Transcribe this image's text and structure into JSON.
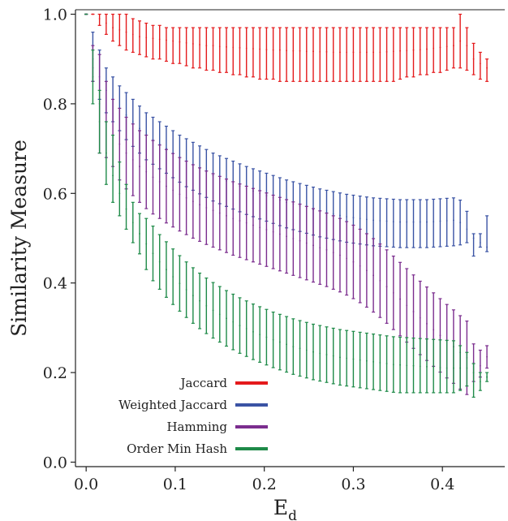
{
  "chart_data": {
    "type": "line",
    "title": "",
    "xlabel": "E",
    "xlabel_sub": "d",
    "ylabel": "Similarity Measure",
    "xlim": [
      -0.012,
      0.47
    ],
    "ylim": [
      -0.01,
      1.01
    ],
    "xticks": [
      0.0,
      0.1,
      0.2,
      0.3,
      0.4
    ],
    "xtick_labels": [
      "0.0",
      "0.1",
      "0.2",
      "0.3",
      "0.4"
    ],
    "yticks": [
      0.0,
      0.2,
      0.4,
      0.6,
      0.8,
      1.0
    ],
    "ytick_labels": [
      "0.0",
      "0.2",
      "0.4",
      "0.6",
      "0.8",
      "1.0"
    ],
    "grid": false,
    "legend_placement": "lower-left",
    "x": [
      0.0,
      0.0075,
      0.015,
      0.0225,
      0.03,
      0.0375,
      0.045,
      0.0525,
      0.06,
      0.0675,
      0.075,
      0.0825,
      0.09,
      0.0975,
      0.105,
      0.1125,
      0.12,
      0.1275,
      0.135,
      0.1425,
      0.15,
      0.1575,
      0.165,
      0.1725,
      0.18,
      0.1875,
      0.195,
      0.2025,
      0.21,
      0.2175,
      0.225,
      0.2325,
      0.24,
      0.2475,
      0.255,
      0.2625,
      0.27,
      0.2775,
      0.285,
      0.2925,
      0.3,
      0.3075,
      0.315,
      0.3225,
      0.33,
      0.3375,
      0.345,
      0.3525,
      0.36,
      0.3675,
      0.375,
      0.3825,
      0.39,
      0.3975,
      0.405,
      0.4125,
      0.42,
      0.4275,
      0.435,
      0.4425,
      0.45
    ],
    "series": [
      {
        "name": "Jaccard",
        "color": "#e41a1c",
        "mean": [
          1.0,
          1.0,
          0.99,
          0.98,
          0.97,
          0.965,
          0.96,
          0.955,
          0.95,
          0.948,
          0.946,
          0.944,
          0.942,
          0.94,
          0.938,
          0.936,
          0.934,
          0.932,
          0.93,
          0.93,
          0.928,
          0.927,
          0.926,
          0.925,
          0.924,
          0.923,
          0.922,
          0.921,
          0.92,
          0.92,
          0.919,
          0.918,
          0.918,
          0.917,
          0.917,
          0.916,
          0.916,
          0.915,
          0.915,
          0.915,
          0.915,
          0.915,
          0.915,
          0.915,
          0.915,
          0.916,
          0.917,
          0.918,
          0.919,
          0.92,
          0.921,
          0.922,
          0.924,
          0.926,
          0.928,
          0.93,
          0.94,
          0.93,
          0.9,
          0.89,
          0.88
        ],
        "lower": [
          1.0,
          1.0,
          0.975,
          0.955,
          0.94,
          0.93,
          0.92,
          0.915,
          0.91,
          0.905,
          0.9,
          0.9,
          0.895,
          0.89,
          0.89,
          0.885,
          0.88,
          0.88,
          0.875,
          0.875,
          0.87,
          0.87,
          0.865,
          0.865,
          0.86,
          0.86,
          0.855,
          0.855,
          0.855,
          0.85,
          0.85,
          0.85,
          0.85,
          0.85,
          0.85,
          0.85,
          0.85,
          0.85,
          0.85,
          0.85,
          0.85,
          0.85,
          0.85,
          0.85,
          0.85,
          0.85,
          0.85,
          0.855,
          0.86,
          0.86,
          0.865,
          0.865,
          0.87,
          0.87,
          0.875,
          0.88,
          0.88,
          0.875,
          0.865,
          0.855,
          0.85
        ],
        "upper": [
          1.0,
          1.0,
          1.0,
          1.0,
          1.0,
          1.0,
          1.0,
          0.99,
          0.985,
          0.98,
          0.975,
          0.975,
          0.97,
          0.97,
          0.97,
          0.97,
          0.97,
          0.97,
          0.97,
          0.97,
          0.97,
          0.97,
          0.97,
          0.97,
          0.97,
          0.97,
          0.97,
          0.97,
          0.97,
          0.97,
          0.97,
          0.97,
          0.97,
          0.97,
          0.97,
          0.97,
          0.97,
          0.97,
          0.97,
          0.97,
          0.97,
          0.97,
          0.97,
          0.97,
          0.97,
          0.97,
          0.97,
          0.97,
          0.97,
          0.97,
          0.97,
          0.97,
          0.97,
          0.97,
          0.97,
          0.97,
          1.0,
          0.97,
          0.935,
          0.915,
          0.9
        ]
      },
      {
        "name": "Weighted Jaccard",
        "color": "#3a53a4",
        "mean": [
          1.0,
          0.9,
          0.86,
          0.83,
          0.81,
          0.79,
          0.775,
          0.76,
          0.745,
          0.73,
          0.72,
          0.71,
          0.7,
          0.69,
          0.68,
          0.672,
          0.664,
          0.656,
          0.648,
          0.64,
          0.634,
          0.628,
          0.622,
          0.616,
          0.61,
          0.605,
          0.6,
          0.595,
          0.59,
          0.585,
          0.58,
          0.576,
          0.572,
          0.568,
          0.564,
          0.56,
          0.557,
          0.554,
          0.551,
          0.548,
          0.546,
          0.544,
          0.542,
          0.54,
          0.539,
          0.538,
          0.537,
          0.536,
          0.536,
          0.536,
          0.536,
          0.536,
          0.537,
          0.538,
          0.539,
          0.54,
          0.535,
          0.52,
          0.5,
          0.49,
          0.48
        ],
        "lower": [
          1.0,
          0.85,
          0.81,
          0.78,
          0.76,
          0.74,
          0.72,
          0.705,
          0.69,
          0.675,
          0.665,
          0.655,
          0.645,
          0.635,
          0.625,
          0.615,
          0.607,
          0.599,
          0.591,
          0.583,
          0.577,
          0.571,
          0.565,
          0.559,
          0.553,
          0.548,
          0.543,
          0.538,
          0.533,
          0.528,
          0.523,
          0.519,
          0.515,
          0.511,
          0.507,
          0.503,
          0.5,
          0.497,
          0.494,
          0.491,
          0.489,
          0.487,
          0.485,
          0.483,
          0.482,
          0.481,
          0.48,
          0.479,
          0.479,
          0.479,
          0.479,
          0.479,
          0.48,
          0.481,
          0.482,
          0.483,
          0.485,
          0.49,
          0.46,
          0.48,
          0.47
        ],
        "upper": [
          1.0,
          0.96,
          0.92,
          0.88,
          0.86,
          0.84,
          0.825,
          0.81,
          0.795,
          0.78,
          0.77,
          0.76,
          0.75,
          0.74,
          0.73,
          0.722,
          0.714,
          0.706,
          0.698,
          0.69,
          0.684,
          0.678,
          0.672,
          0.666,
          0.66,
          0.655,
          0.65,
          0.645,
          0.64,
          0.635,
          0.63,
          0.626,
          0.622,
          0.618,
          0.614,
          0.61,
          0.607,
          0.604,
          0.601,
          0.598,
          0.596,
          0.594,
          0.592,
          0.59,
          0.589,
          0.588,
          0.587,
          0.586,
          0.586,
          0.586,
          0.586,
          0.586,
          0.587,
          0.588,
          0.589,
          0.59,
          0.585,
          0.56,
          0.51,
          0.51,
          0.55
        ]
      },
      {
        "name": "Hamming",
        "color": "#7b2d8e",
        "mean": [
          1.0,
          0.88,
          0.8,
          0.76,
          0.73,
          0.71,
          0.69,
          0.675,
          0.66,
          0.648,
          0.636,
          0.626,
          0.616,
          0.607,
          0.598,
          0.59,
          0.582,
          0.575,
          0.568,
          0.562,
          0.556,
          0.55,
          0.544,
          0.539,
          0.534,
          0.529,
          0.524,
          0.519,
          0.514,
          0.509,
          0.504,
          0.499,
          0.494,
          0.489,
          0.484,
          0.479,
          0.474,
          0.468,
          0.462,
          0.455,
          0.447,
          0.438,
          0.428,
          0.417,
          0.405,
          0.392,
          0.378,
          0.364,
          0.35,
          0.336,
          0.322,
          0.309,
          0.296,
          0.283,
          0.27,
          0.258,
          0.245,
          0.233,
          0.222,
          0.215,
          0.235
        ],
        "lower": [
          1.0,
          0.85,
          0.69,
          0.68,
          0.66,
          0.63,
          0.61,
          0.595,
          0.58,
          0.566,
          0.554,
          0.544,
          0.534,
          0.525,
          0.516,
          0.508,
          0.5,
          0.493,
          0.486,
          0.48,
          0.474,
          0.468,
          0.462,
          0.457,
          0.452,
          0.447,
          0.442,
          0.437,
          0.432,
          0.427,
          0.422,
          0.417,
          0.412,
          0.407,
          0.402,
          0.397,
          0.392,
          0.386,
          0.38,
          0.373,
          0.365,
          0.356,
          0.346,
          0.335,
          0.323,
          0.31,
          0.296,
          0.282,
          0.268,
          0.254,
          0.24,
          0.227,
          0.214,
          0.201,
          0.188,
          0.176,
          0.163,
          0.151,
          0.18,
          0.19,
          0.21
        ],
        "upper": [
          1.0,
          0.93,
          0.91,
          0.85,
          0.81,
          0.79,
          0.77,
          0.755,
          0.74,
          0.73,
          0.718,
          0.708,
          0.698,
          0.689,
          0.68,
          0.672,
          0.664,
          0.657,
          0.65,
          0.644,
          0.638,
          0.632,
          0.626,
          0.621,
          0.616,
          0.611,
          0.606,
          0.601,
          0.596,
          0.591,
          0.586,
          0.581,
          0.576,
          0.571,
          0.566,
          0.561,
          0.556,
          0.55,
          0.544,
          0.537,
          0.529,
          0.52,
          0.51,
          0.499,
          0.487,
          0.474,
          0.46,
          0.446,
          0.432,
          0.418,
          0.404,
          0.391,
          0.378,
          0.365,
          0.352,
          0.34,
          0.327,
          0.315,
          0.264,
          0.25,
          0.26
        ]
      },
      {
        "name": "Order Min Hash",
        "color": "#1e8a48",
        "mean": [
          1.0,
          0.86,
          0.76,
          0.69,
          0.64,
          0.6,
          0.565,
          0.535,
          0.51,
          0.487,
          0.466,
          0.447,
          0.43,
          0.414,
          0.399,
          0.385,
          0.372,
          0.36,
          0.349,
          0.339,
          0.33,
          0.321,
          0.313,
          0.305,
          0.298,
          0.291,
          0.285,
          0.279,
          0.273,
          0.268,
          0.263,
          0.258,
          0.254,
          0.25,
          0.246,
          0.243,
          0.24,
          0.237,
          0.234,
          0.232,
          0.23,
          0.228,
          0.226,
          0.224,
          0.222,
          0.22,
          0.218,
          0.217,
          0.216,
          0.215,
          0.214,
          0.213,
          0.212,
          0.211,
          0.21,
          0.21,
          0.21,
          0.21,
          0.2,
          0.18,
          0.19
        ],
        "lower": [
          1.0,
          0.8,
          0.69,
          0.62,
          0.58,
          0.55,
          0.52,
          0.49,
          0.465,
          0.43,
          0.405,
          0.386,
          0.368,
          0.352,
          0.337,
          0.323,
          0.31,
          0.298,
          0.287,
          0.277,
          0.268,
          0.259,
          0.251,
          0.243,
          0.236,
          0.229,
          0.223,
          0.217,
          0.211,
          0.206,
          0.201,
          0.196,
          0.192,
          0.188,
          0.184,
          0.181,
          0.178,
          0.175,
          0.172,
          0.17,
          0.168,
          0.166,
          0.164,
          0.162,
          0.16,
          0.158,
          0.156,
          0.155,
          0.155,
          0.155,
          0.155,
          0.155,
          0.155,
          0.155,
          0.155,
          0.155,
          0.16,
          0.17,
          0.145,
          0.16,
          0.18
        ],
        "upper": [
          1.0,
          0.92,
          0.83,
          0.76,
          0.73,
          0.67,
          0.62,
          0.58,
          0.555,
          0.544,
          0.527,
          0.508,
          0.492,
          0.476,
          0.461,
          0.447,
          0.434,
          0.422,
          0.411,
          0.401,
          0.392,
          0.383,
          0.375,
          0.367,
          0.36,
          0.353,
          0.347,
          0.341,
          0.335,
          0.33,
          0.325,
          0.32,
          0.316,
          0.312,
          0.308,
          0.305,
          0.302,
          0.299,
          0.296,
          0.294,
          0.292,
          0.29,
          0.288,
          0.286,
          0.284,
          0.282,
          0.28,
          0.279,
          0.278,
          0.277,
          0.276,
          0.275,
          0.274,
          0.273,
          0.272,
          0.271,
          0.26,
          0.245,
          0.22,
          0.2,
          0.2
        ]
      }
    ]
  }
}
